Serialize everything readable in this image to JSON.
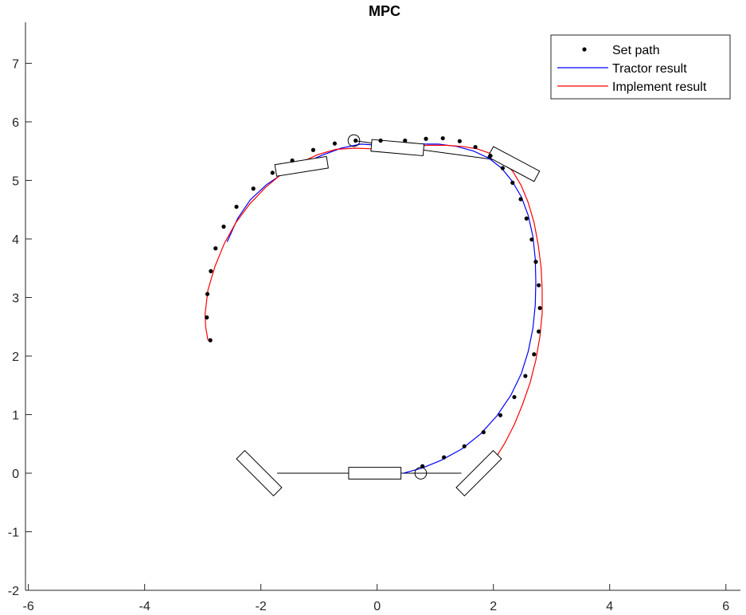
{
  "chart_data": {
    "type": "line",
    "title": "MPC",
    "xlabel": "",
    "ylabel": "",
    "xlim": [
      -6.05,
      6.25
    ],
    "ylim": [
      -2,
      7.7
    ],
    "x_ticks": [
      -6,
      -4,
      -2,
      0,
      2,
      4,
      6
    ],
    "y_ticks": [
      -2,
      -1,
      0,
      1,
      2,
      3,
      4,
      5,
      6,
      7
    ],
    "grid": false,
    "legend_position": "top-right",
    "legend": {
      "entries": [
        "Set path",
        "Tractor result",
        "Implement result"
      ]
    },
    "series": [
      {
        "name": "Set path",
        "style": "markers",
        "color": "#000000",
        "x": [
          0.78,
          1.15,
          1.5,
          1.83,
          2.12,
          2.36,
          2.55,
          2.7,
          2.78,
          2.8,
          2.78,
          2.73,
          2.66,
          2.57,
          2.47,
          2.33,
          2.16,
          1.95,
          1.69,
          1.42,
          1.13,
          0.84,
          0.48,
          0.06,
          -0.37,
          -0.73,
          -1.1,
          -1.46,
          -1.8,
          -2.13,
          -2.42,
          -2.64,
          -2.78,
          -2.86,
          -2.92,
          -2.93,
          -2.87
        ],
        "y": [
          0.12,
          0.27,
          0.46,
          0.7,
          0.99,
          1.3,
          1.66,
          2.03,
          2.42,
          2.82,
          3.21,
          3.61,
          3.99,
          4.35,
          4.68,
          4.96,
          5.21,
          5.42,
          5.57,
          5.67,
          5.72,
          5.71,
          5.68,
          5.68,
          5.68,
          5.63,
          5.52,
          5.34,
          5.13,
          4.86,
          4.55,
          4.21,
          3.84,
          3.45,
          3.06,
          2.66,
          2.27
        ]
      },
      {
        "name": "Tractor result",
        "style": "line",
        "color": "#0000ff",
        "x": [
          0.45,
          0.78,
          1.1,
          1.45,
          1.78,
          2.06,
          2.3,
          2.48,
          2.6,
          2.68,
          2.72,
          2.73,
          2.72,
          2.68,
          2.6,
          2.48,
          2.32,
          2.14,
          1.92,
          1.66,
          1.37,
          1.05,
          0.72,
          0.38,
          0.05,
          -0.28,
          -0.62,
          -0.95,
          -1.27,
          -1.6,
          -1.9,
          -2.18,
          -2.4,
          -2.58
        ],
        "y": [
          0.0,
          0.09,
          0.22,
          0.41,
          0.67,
          0.98,
          1.33,
          1.7,
          2.08,
          2.48,
          2.87,
          3.27,
          3.66,
          4.04,
          4.4,
          4.72,
          4.99,
          5.21,
          5.38,
          5.5,
          5.58,
          5.62,
          5.62,
          5.6,
          5.6,
          5.62,
          5.55,
          5.43,
          5.29,
          5.13,
          4.93,
          4.67,
          4.35,
          3.95
        ]
      },
      {
        "name": "Implement result",
        "style": "line",
        "color": "#ff0000",
        "x": [
          2.05,
          2.2,
          2.36,
          2.5,
          2.63,
          2.73,
          2.8,
          2.84,
          2.84,
          2.82,
          2.77,
          2.7,
          2.6,
          2.48,
          2.33,
          2.15,
          1.95,
          1.72,
          1.46,
          1.18,
          0.88,
          0.57,
          0.25,
          -0.07,
          -0.39,
          -0.71,
          -1.02,
          -1.33,
          -1.63,
          -1.92,
          -2.19,
          -2.43,
          -2.63,
          -2.79,
          -2.91,
          -2.96,
          -2.95,
          -2.91
        ],
        "y": [
          0.28,
          0.52,
          0.83,
          1.17,
          1.54,
          1.93,
          2.33,
          2.73,
          3.13,
          3.52,
          3.91,
          4.28,
          4.62,
          4.91,
          5.16,
          5.34,
          5.46,
          5.54,
          5.58,
          5.6,
          5.6,
          5.58,
          5.55,
          5.54,
          5.55,
          5.53,
          5.44,
          5.3,
          5.12,
          4.88,
          4.6,
          4.28,
          3.92,
          3.53,
          3.13,
          2.72,
          2.5,
          2.27
        ]
      }
    ],
    "shapes": {
      "rectangles": [
        {
          "cx": -0.04,
          "cy": 0.0,
          "length": 0.9,
          "width": 0.2,
          "angle_deg": 0
        },
        {
          "cx": -2.03,
          "cy": 0.0,
          "length": 0.9,
          "width": 0.2,
          "angle_deg": -45
        },
        {
          "cx": 1.75,
          "cy": 0.0,
          "length": 0.9,
          "width": 0.2,
          "angle_deg": 45
        },
        {
          "cx": -1.3,
          "cy": 5.24,
          "length": 0.9,
          "width": 0.2,
          "angle_deg": 9
        },
        {
          "cx": 0.35,
          "cy": 5.56,
          "length": 0.9,
          "width": 0.2,
          "angle_deg": -5
        },
        {
          "cx": 2.35,
          "cy": 5.28,
          "length": 0.9,
          "width": 0.2,
          "angle_deg": -28
        }
      ],
      "circles": [
        {
          "cx": 0.75,
          "cy": 0.0,
          "r": 0.1
        },
        {
          "cx": -0.4,
          "cy": 5.68,
          "r": 0.1
        }
      ],
      "links": [
        {
          "x": [
            -1.72,
            1.45
          ],
          "y": [
            0.0,
            0.0
          ]
        },
        {
          "x": [
            -0.4,
            2.05
          ],
          "y": [
            5.68,
            5.35
          ]
        }
      ]
    },
    "colors": {
      "axis": "#262626",
      "set_path": "#000000",
      "tractor": "#0000ff",
      "implement": "#ff0000"
    }
  }
}
